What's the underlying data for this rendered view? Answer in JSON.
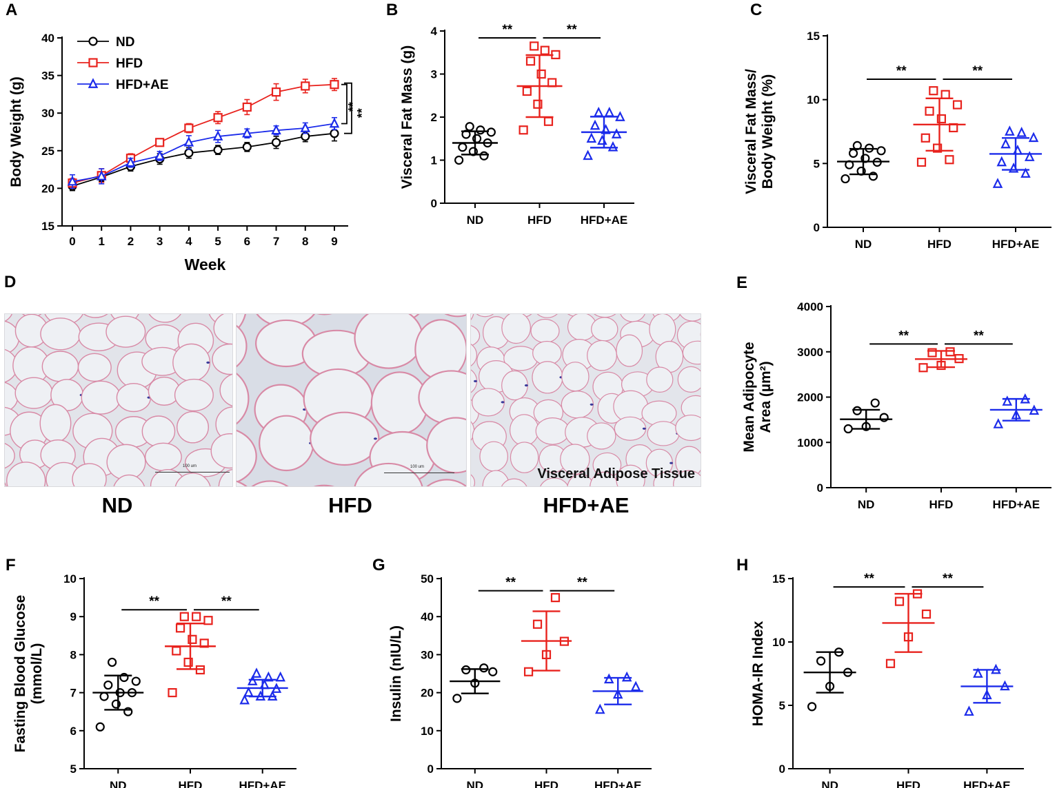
{
  "colors": {
    "nd": "#000000",
    "hfd": "#e8221d",
    "hfdae": "#1b2bea"
  },
  "chart_data": [
    {
      "id": "A",
      "type": "line",
      "letter": "A",
      "xlabel": "Week",
      "ylabel": "Body Weight (g)",
      "x": [
        0,
        1,
        2,
        3,
        4,
        5,
        6,
        7,
        8,
        9
      ],
      "ylim": [
        15,
        40
      ],
      "yticks": [
        15,
        20,
        25,
        30,
        35,
        40
      ],
      "series": [
        {
          "name": "ND",
          "marker": "circle",
          "colorKey": "nd",
          "values": [
            20.3,
            21.5,
            22.9,
            23.9,
            24.7,
            25.1,
            25.5,
            26.1,
            26.9,
            27.3
          ],
          "err": [
            0.6,
            0.6,
            0.6,
            0.7,
            0.7,
            0.6,
            0.6,
            0.8,
            0.7,
            1.0
          ]
        },
        {
          "name": "HFD",
          "marker": "square",
          "colorKey": "hfd",
          "values": [
            20.7,
            21.7,
            24.0,
            26.1,
            28.0,
            29.4,
            30.8,
            32.8,
            33.6,
            33.8
          ],
          "err": [
            0.6,
            0.9,
            0.6,
            0.5,
            0.6,
            0.8,
            1.0,
            1.1,
            0.9,
            0.8
          ]
        },
        {
          "name": "HFD+AE",
          "marker": "triangle",
          "colorKey": "hfdae",
          "values": [
            20.9,
            21.6,
            23.4,
            24.3,
            26.1,
            26.9,
            27.3,
            27.7,
            28.0,
            28.6
          ],
          "err": [
            0.9,
            1.0,
            0.6,
            0.6,
            0.9,
            0.8,
            0.6,
            0.6,
            0.7,
            0.8
          ]
        }
      ],
      "significance": [
        "**",
        "**"
      ]
    },
    {
      "id": "B",
      "type": "scatter",
      "letter": "B",
      "ylabel": "Visceral Fat Mass (g)",
      "categories": [
        "ND",
        "HFD",
        "HFD+AE"
      ],
      "ylim": [
        0,
        4
      ],
      "yticks": [
        0,
        1,
        2,
        3,
        4
      ],
      "groups": [
        {
          "points": [
            1.0,
            1.1,
            1.2,
            1.3,
            1.4,
            1.5,
            1.6,
            1.65,
            1.7,
            1.78
          ],
          "mean": 1.4,
          "sd": 0.27
        },
        {
          "points": [
            1.7,
            1.9,
            2.3,
            2.6,
            2.8,
            3.0,
            3.3,
            3.45,
            3.55,
            3.65
          ],
          "mean": 2.72,
          "sd": 0.72
        },
        {
          "points": [
            1.1,
            1.3,
            1.45,
            1.5,
            1.6,
            1.7,
            1.8,
            2.0,
            2.1,
            2.1
          ],
          "mean": 1.65,
          "sd": 0.36
        }
      ],
      "significance": [
        "**",
        "**"
      ]
    },
    {
      "id": "C",
      "type": "scatter",
      "letter": "C",
      "ylabel": [
        "Visceral Fat Mass/",
        "Body Weight (%)"
      ],
      "categories": [
        "ND",
        "HFD",
        "HFD+AE"
      ],
      "ylim": [
        0,
        15
      ],
      "yticks": [
        0,
        5,
        10,
        15
      ],
      "groups": [
        {
          "points": [
            3.8,
            4.0,
            4.4,
            4.9,
            5.1,
            5.4,
            5.8,
            6.0,
            6.2,
            6.4
          ],
          "mean": 5.15,
          "sd": 1.0
        },
        {
          "points": [
            5.1,
            5.3,
            6.2,
            7.0,
            7.8,
            8.5,
            9.1,
            9.6,
            10.4,
            10.7
          ],
          "mean": 8.05,
          "sd": 2.05
        },
        {
          "points": [
            3.4,
            4.2,
            4.6,
            5.1,
            5.5,
            6.0,
            6.5,
            7.0,
            7.4,
            7.5
          ],
          "mean": 5.75,
          "sd": 1.25
        }
      ],
      "significance": [
        "**",
        "**"
      ]
    },
    {
      "id": "E",
      "type": "scatter",
      "letter": "E",
      "ylabel": [
        "Mean Adipocyte",
        "Area (µm²)"
      ],
      "categories": [
        "ND",
        "HFD",
        "HFD+AE"
      ],
      "ylim": [
        0,
        4000
      ],
      "yticks": [
        0,
        1000,
        2000,
        3000,
        4000
      ],
      "groups": [
        {
          "points": [
            1300,
            1350,
            1550,
            1700,
            1870
          ],
          "mean": 1510,
          "sd": 210
        },
        {
          "points": [
            2650,
            2700,
            2850,
            2980,
            3000
          ],
          "mean": 2840,
          "sd": 180
        },
        {
          "points": [
            1400,
            1600,
            1700,
            1900,
            1950
          ],
          "mean": 1720,
          "sd": 240
        }
      ],
      "significance": [
        "**",
        "**"
      ]
    },
    {
      "id": "F",
      "type": "scatter",
      "letter": "F",
      "ylabel": [
        "Fasting Blood Glucose",
        "(mmol/L)"
      ],
      "categories": [
        "ND",
        "HFD",
        "HFD+AE"
      ],
      "ylim": [
        5,
        10
      ],
      "yticks": [
        5,
        6,
        7,
        8,
        9,
        10
      ],
      "groups": [
        {
          "points": [
            6.1,
            6.5,
            6.7,
            6.9,
            7.0,
            7.0,
            7.2,
            7.3,
            7.4,
            7.8
          ],
          "mean": 7.0,
          "sd": 0.45
        },
        {
          "points": [
            7.0,
            7.6,
            7.8,
            8.1,
            8.3,
            8.4,
            8.7,
            8.9,
            9.0,
            9.0
          ],
          "mean": 8.22,
          "sd": 0.6
        },
        {
          "points": [
            6.8,
            6.9,
            6.9,
            7.0,
            7.1,
            7.2,
            7.3,
            7.4,
            7.4,
            7.5
          ],
          "mean": 7.12,
          "sd": 0.22
        }
      ],
      "significance": [
        "**",
        "**"
      ]
    },
    {
      "id": "G",
      "type": "scatter",
      "letter": "G",
      "ylabel": "Insulin (nIU/L)",
      "categories": [
        "ND",
        "HFD",
        "HFD+AE"
      ],
      "ylim": [
        0,
        50
      ],
      "yticks": [
        0,
        10,
        20,
        30,
        40,
        50
      ],
      "groups": [
        {
          "points": [
            18.5,
            22.5,
            25.5,
            26,
            26.5
          ],
          "mean": 23.0,
          "sd": 3.2
        },
        {
          "points": [
            25.5,
            30,
            33.5,
            38,
            45
          ],
          "mean": 33.6,
          "sd": 7.8
        },
        {
          "points": [
            15.5,
            19.5,
            21.5,
            23.5,
            24
          ],
          "mean": 20.4,
          "sd": 3.5
        }
      ],
      "significance": [
        "**",
        "**"
      ]
    },
    {
      "id": "H",
      "type": "scatter",
      "letter": "H",
      "ylabel": "HOMA-IR Index",
      "categories": [
        "ND",
        "HFD",
        "HFD+AE"
      ],
      "ylim": [
        0,
        15
      ],
      "yticks": [
        0,
        5,
        10,
        15
      ],
      "groups": [
        {
          "points": [
            4.9,
            6.5,
            7.6,
            8.5,
            9.2
          ],
          "mean": 7.6,
          "sd": 1.6
        },
        {
          "points": [
            8.3,
            10.4,
            12.2,
            13.2,
            13.8
          ],
          "mean": 11.5,
          "sd": 2.3
        },
        {
          "points": [
            4.5,
            5.8,
            6.5,
            7.5,
            7.8
          ],
          "mean": 6.5,
          "sd": 1.3
        }
      ],
      "significance": [
        "**",
        "**"
      ]
    }
  ],
  "micrographs": {
    "letter": "D",
    "captions": [
      "ND",
      "HFD",
      "HFD+AE"
    ],
    "scale_text": "100 um",
    "tissue_label": "Visceral Adipose Tissue"
  }
}
